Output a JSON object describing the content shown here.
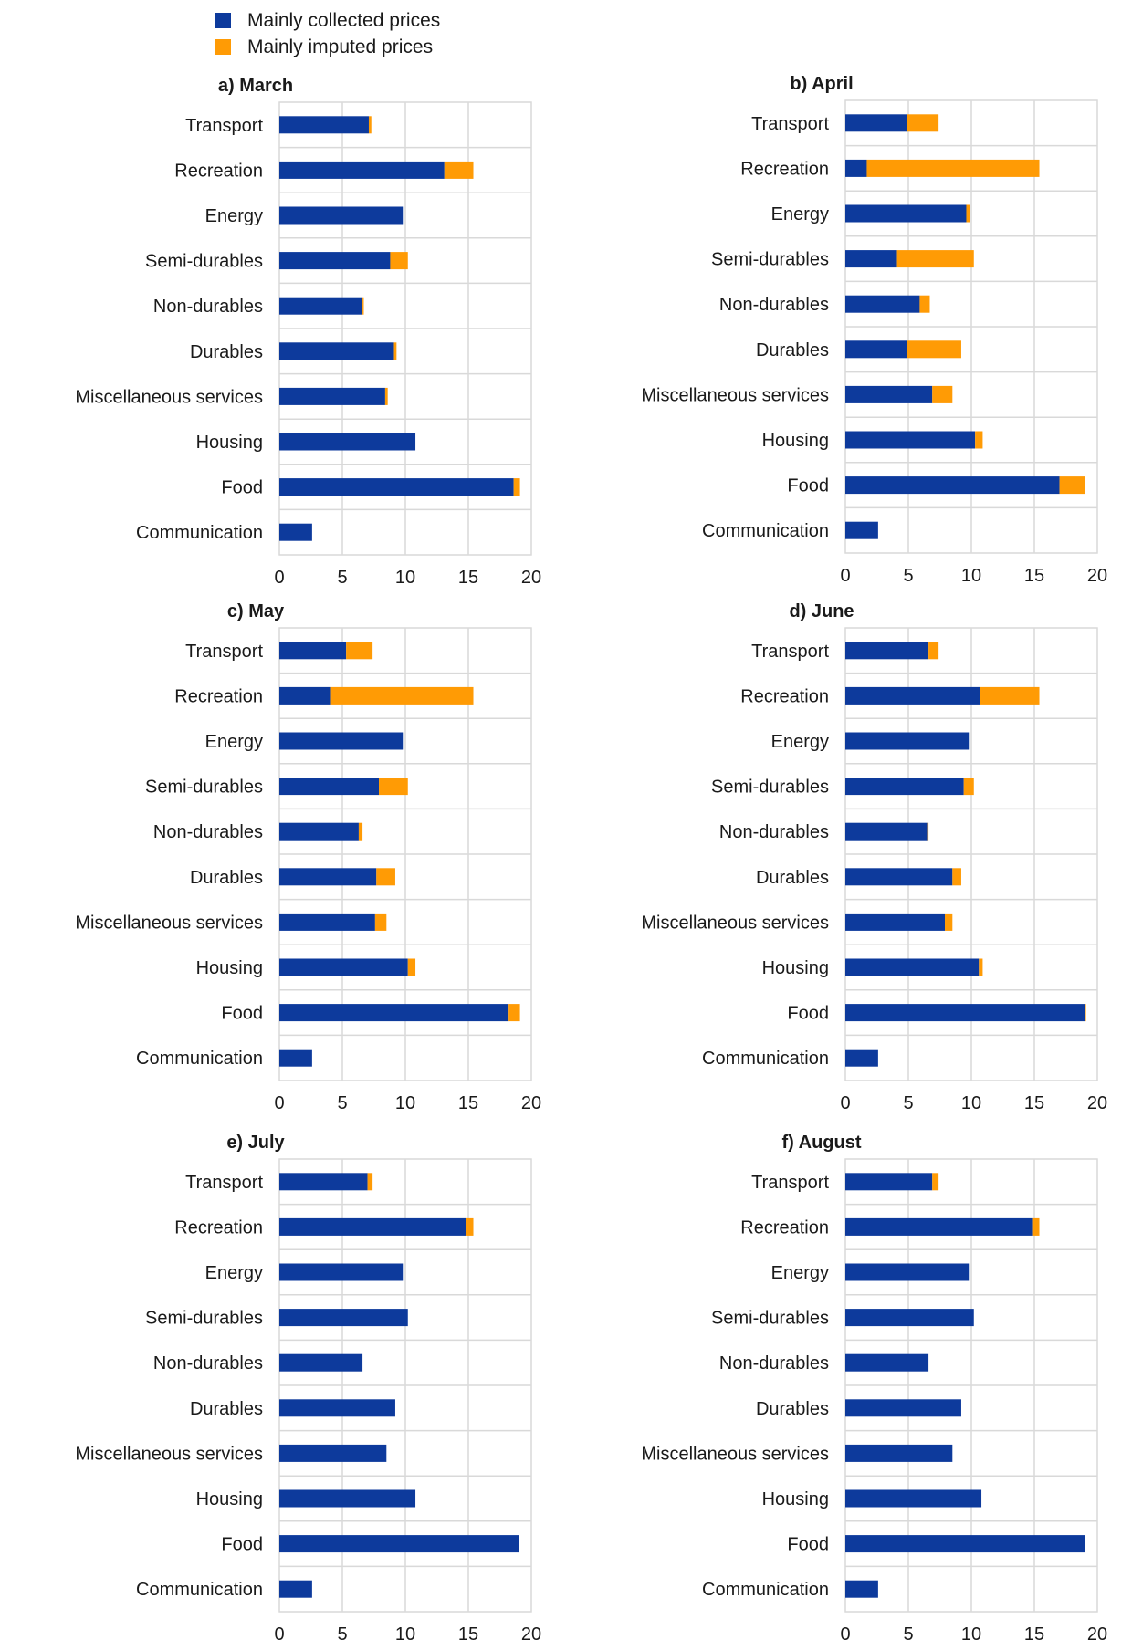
{
  "legend": {
    "collected_label": "Mainly collected prices",
    "imputed_label": "Mainly imputed prices"
  },
  "colors": {
    "collected": "#0d3a9c",
    "imputed": "#ff9b05"
  },
  "chart_data": [
    {
      "type": "bar",
      "orientation": "horizontal",
      "stacked": true,
      "title": "a) March",
      "categories": [
        "Transport",
        "Recreation",
        "Energy",
        "Semi-durables",
        "Non-durables",
        "Durables",
        "Miscellaneous services",
        "Housing",
        "Food",
        "Communication"
      ],
      "series": [
        {
          "name": "Mainly collected prices",
          "values": [
            7.1,
            13.1,
            9.8,
            8.8,
            6.6,
            9.1,
            8.4,
            10.8,
            18.6,
            2.6
          ]
        },
        {
          "name": "Mainly imputed prices",
          "values": [
            0.2,
            2.3,
            0.0,
            1.4,
            0.1,
            0.2,
            0.2,
            0.0,
            0.5,
            0.0
          ]
        }
      ],
      "xlim": [
        0,
        20
      ],
      "xticks": [
        0,
        5,
        10,
        15,
        20
      ],
      "grid": true
    },
    {
      "type": "bar",
      "orientation": "horizontal",
      "stacked": true,
      "title": "b) April",
      "categories": [
        "Transport",
        "Recreation",
        "Energy",
        "Semi-durables",
        "Non-durables",
        "Durables",
        "Miscellaneous services",
        "Housing",
        "Food",
        "Communication"
      ],
      "series": [
        {
          "name": "Mainly collected prices",
          "values": [
            4.9,
            1.7,
            9.6,
            4.1,
            5.9,
            4.9,
            6.9,
            10.3,
            17.0,
            2.6
          ]
        },
        {
          "name": "Mainly imputed prices",
          "values": [
            2.5,
            13.7,
            0.3,
            6.1,
            0.8,
            4.3,
            1.6,
            0.6,
            2.0,
            0.0
          ]
        }
      ],
      "xlim": [
        0,
        20
      ],
      "xticks": [
        0,
        5,
        10,
        15,
        20
      ],
      "grid": true
    },
    {
      "type": "bar",
      "orientation": "horizontal",
      "stacked": true,
      "title": "c) May",
      "categories": [
        "Transport",
        "Recreation",
        "Energy",
        "Semi-durables",
        "Non-durables",
        "Durables",
        "Miscellaneous services",
        "Housing",
        "Food",
        "Communication"
      ],
      "series": [
        {
          "name": "Mainly collected prices",
          "values": [
            5.3,
            4.1,
            9.8,
            7.9,
            6.3,
            7.7,
            7.6,
            10.2,
            18.2,
            2.6
          ]
        },
        {
          "name": "Mainly imputed prices",
          "values": [
            2.1,
            11.3,
            0.0,
            2.3,
            0.3,
            1.5,
            0.9,
            0.6,
            0.9,
            0.0
          ]
        }
      ],
      "xlim": [
        0,
        20
      ],
      "xticks": [
        0,
        5,
        10,
        15,
        20
      ],
      "grid": true
    },
    {
      "type": "bar",
      "orientation": "horizontal",
      "stacked": true,
      "title": "d) June",
      "categories": [
        "Transport",
        "Recreation",
        "Energy",
        "Semi-durables",
        "Non-durables",
        "Durables",
        "Miscellaneous services",
        "Housing",
        "Food",
        "Communication"
      ],
      "series": [
        {
          "name": "Mainly collected prices",
          "values": [
            6.6,
            10.7,
            9.8,
            9.4,
            6.5,
            8.5,
            7.9,
            10.6,
            19.0,
            2.6
          ]
        },
        {
          "name": "Mainly imputed prices",
          "values": [
            0.8,
            4.7,
            0.0,
            0.8,
            0.1,
            0.7,
            0.6,
            0.3,
            0.1,
            0.0
          ]
        }
      ],
      "xlim": [
        0,
        20
      ],
      "xticks": [
        0,
        5,
        10,
        15,
        20
      ],
      "grid": true
    },
    {
      "type": "bar",
      "orientation": "horizontal",
      "stacked": true,
      "title": "e) July",
      "categories": [
        "Transport",
        "Recreation",
        "Energy",
        "Semi-durables",
        "Non-durables",
        "Durables",
        "Miscellaneous services",
        "Housing",
        "Food",
        "Communication"
      ],
      "series": [
        {
          "name": "Mainly collected prices",
          "values": [
            7.0,
            14.8,
            9.8,
            10.2,
            6.6,
            9.2,
            8.5,
            10.8,
            19.0,
            2.6
          ]
        },
        {
          "name": "Mainly imputed prices",
          "values": [
            0.4,
            0.6,
            0.0,
            0.0,
            0.0,
            0.0,
            0.0,
            0.0,
            0.0,
            0.0
          ]
        }
      ],
      "xlim": [
        0,
        20
      ],
      "xticks": [
        0,
        5,
        10,
        15,
        20
      ],
      "grid": true
    },
    {
      "type": "bar",
      "orientation": "horizontal",
      "stacked": true,
      "title": "f) August",
      "categories": [
        "Transport",
        "Recreation",
        "Energy",
        "Semi-durables",
        "Non-durables",
        "Durables",
        "Miscellaneous services",
        "Housing",
        "Food",
        "Communication"
      ],
      "series": [
        {
          "name": "Mainly collected prices",
          "values": [
            6.9,
            14.9,
            9.8,
            10.2,
            6.6,
            9.2,
            8.5,
            10.8,
            19.0,
            2.6
          ]
        },
        {
          "name": "Mainly imputed prices",
          "values": [
            0.5,
            0.5,
            0.0,
            0.0,
            0.0,
            0.0,
            0.0,
            0.0,
            0.0,
            0.0
          ]
        }
      ],
      "xlim": [
        0,
        20
      ],
      "xticks": [
        0,
        5,
        10,
        15,
        20
      ],
      "grid": true
    }
  ]
}
